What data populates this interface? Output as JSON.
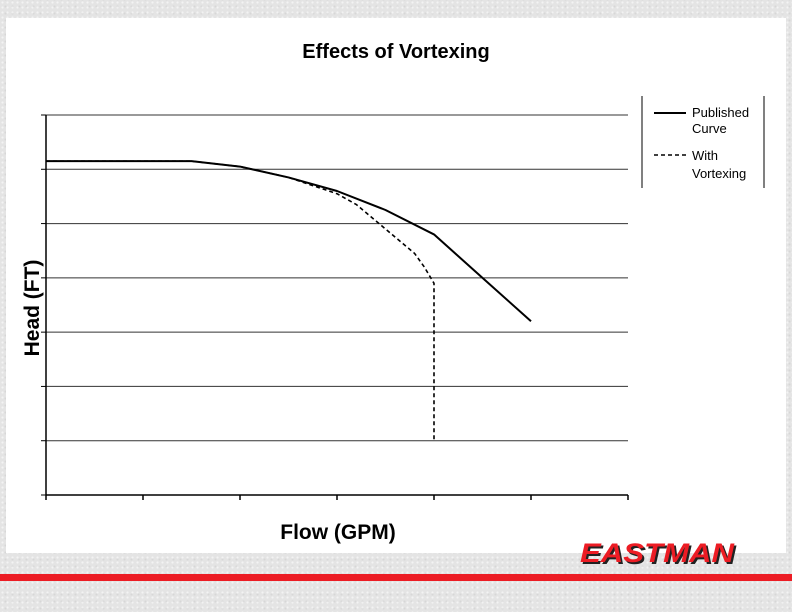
{
  "colors": {
    "brand_red": "#ec1c24",
    "line": "#000000",
    "gridline": "#333333",
    "panel": "#ffffff"
  },
  "logo": {
    "text": "EASTMAN"
  },
  "chart_data": {
    "type": "line",
    "title": "Effects of Vortexing",
    "xlabel": "Flow (GPM)",
    "ylabel": "Head (FT)",
    "xlim": [
      0,
      6
    ],
    "ylim": [
      0,
      7
    ],
    "x_ticks": [
      0,
      1,
      2,
      3,
      4,
      5,
      6
    ],
    "y_ticks": [
      0,
      1,
      2,
      3,
      4,
      5,
      6,
      7
    ],
    "x_tick_labels": [],
    "y_tick_labels": [],
    "grid": "horizontal major gridlines",
    "legend_position": "top-right, outside plot",
    "series": [
      {
        "name": "Published Curve",
        "style": "solid",
        "x": [
          0,
          0.5,
          1.0,
          1.5,
          2.0,
          2.5,
          3.0,
          3.5,
          4.0,
          4.5,
          5.0
        ],
        "y": [
          6.15,
          6.15,
          6.15,
          6.15,
          6.05,
          5.85,
          5.6,
          5.25,
          4.8,
          4.0,
          3.2
        ]
      },
      {
        "name": "With Vortexing",
        "style": "dashed",
        "x": [
          0,
          0.5,
          1.0,
          1.5,
          2.0,
          2.5,
          3.0,
          3.2,
          3.4,
          3.6,
          3.8,
          3.9,
          4.0,
          4.0,
          4.0,
          4.0,
          4.0
        ],
        "y": [
          6.15,
          6.15,
          6.15,
          6.15,
          6.05,
          5.85,
          5.55,
          5.35,
          5.05,
          4.75,
          4.45,
          4.2,
          3.9,
          3.0,
          2.0,
          1.5,
          1.0
        ]
      }
    ]
  }
}
